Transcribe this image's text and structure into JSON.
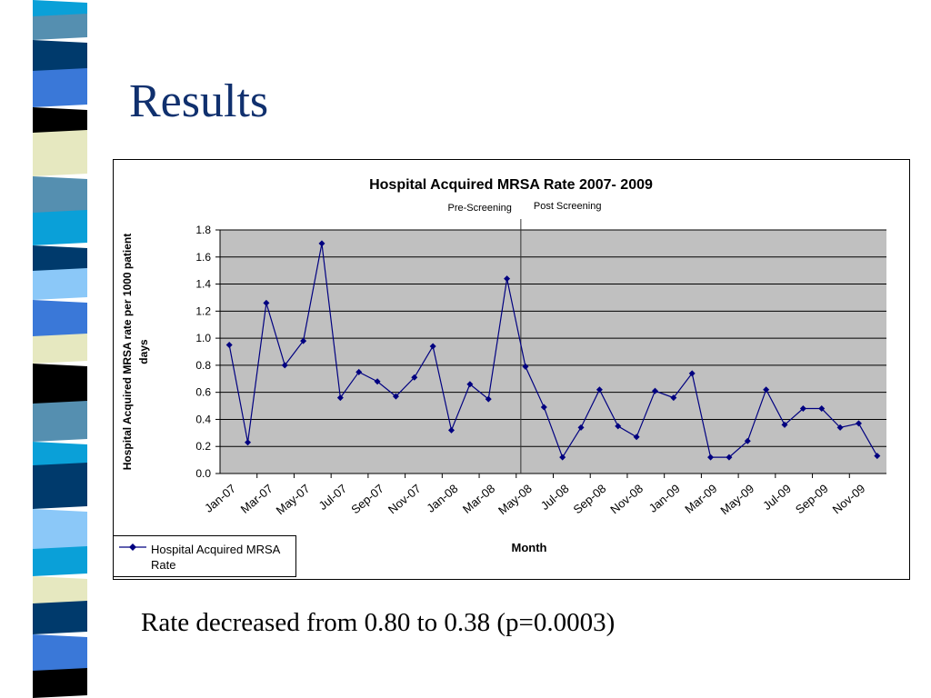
{
  "slide": {
    "title": "Results",
    "conclusion": "Rate decreased from 0.80 to 0.38 (p=0.0003)"
  },
  "colors": {
    "title": "#10306e",
    "series": "#000080",
    "plot_bg": "#c0c0c0",
    "sidebar_palette": [
      "#0aa0d8",
      "#558fb0",
      "#003a6c",
      "#3a78d8",
      "#000000",
      "#e6e8c0",
      "#8bc8f8"
    ]
  },
  "chart_data": {
    "type": "line",
    "title": "Hospital Acquired MRSA Rate 2007- 2009",
    "xlabel": "Month",
    "ylabel": "Hospital Acquired MRSA rate per 1000 patient days",
    "ylim": [
      0,
      1.8
    ],
    "yticks": [
      "0.0",
      "0.2",
      "0.4",
      "0.6",
      "0.8",
      "1.0",
      "1.2",
      "1.4",
      "1.6",
      "1.8"
    ],
    "grid": true,
    "legend_position": "bottom-left",
    "x": [
      "Jan-07",
      "Feb-07",
      "Mar-07",
      "Apr-07",
      "May-07",
      "Jun-07",
      "Jul-07",
      "Aug-07",
      "Sep-07",
      "Oct-07",
      "Nov-07",
      "Dec-07",
      "Jan-08",
      "Feb-08",
      "Mar-08",
      "Apr-08",
      "May-08",
      "Jun-08",
      "Jul-08",
      "Aug-08",
      "Sep-08",
      "Oct-08",
      "Nov-08",
      "Dec-08",
      "Jan-09",
      "Feb-09",
      "Mar-09",
      "Apr-09",
      "May-09",
      "Jun-09",
      "Jul-09",
      "Aug-09",
      "Sep-09",
      "Oct-09",
      "Nov-09",
      "Dec-09"
    ],
    "x_tick_labels": [
      "Jan-07",
      "Mar-07",
      "May-07",
      "Jul-07",
      "Sep-07",
      "Nov-07",
      "Jan-08",
      "Mar-08",
      "May-08",
      "Jul-08",
      "Sep-08",
      "Nov-08",
      "Jan-09",
      "Mar-09",
      "May-09",
      "Jul-09",
      "Sep-09",
      "Nov-09"
    ],
    "series": [
      {
        "name": "Hospital Acquired MRSA Rate",
        "values": [
          0.95,
          0.23,
          1.26,
          0.8,
          0.98,
          1.7,
          0.56,
          0.75,
          0.68,
          0.57,
          0.71,
          0.94,
          0.32,
          0.66,
          0.55,
          1.44,
          0.79,
          0.49,
          0.12,
          0.34,
          0.62,
          0.35,
          0.27,
          0.61,
          0.56,
          0.74,
          0.12,
          0.12,
          0.24,
          0.62,
          0.36,
          0.48,
          0.48,
          0.34,
          0.37,
          0.13
        ]
      }
    ],
    "annotations": {
      "divider_after_index": 15.75,
      "pre_label": "Pre-Screening",
      "post_label": "Post Screening"
    }
  }
}
